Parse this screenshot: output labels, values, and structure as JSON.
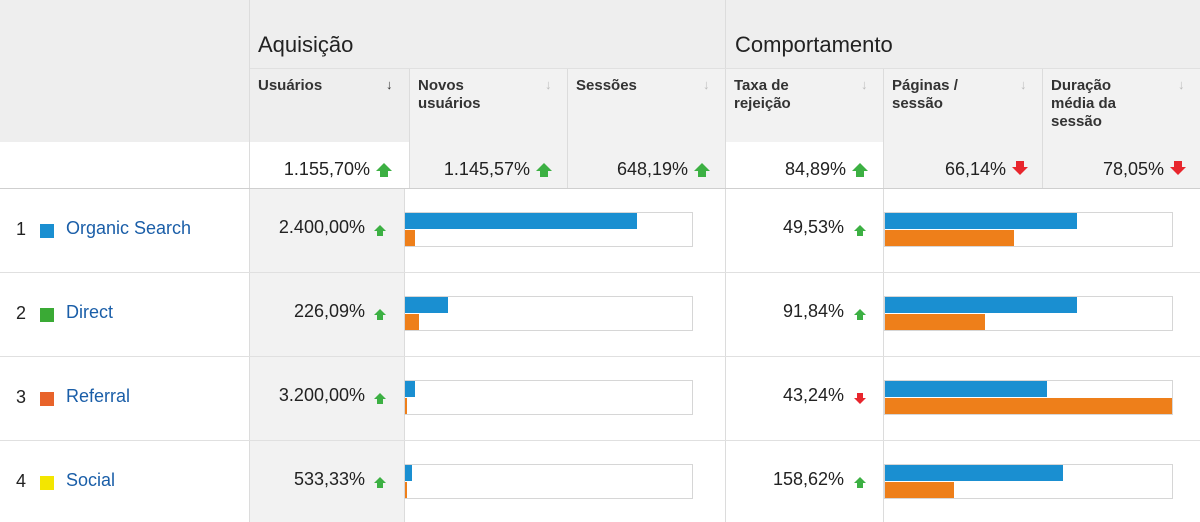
{
  "groups": {
    "acquisition": "Aquisição",
    "behavior": "Comportamento"
  },
  "columns": {
    "users": "Usuários",
    "new_users": "Novos usuários",
    "sessions": "Sessões",
    "bounce_rate": "Taxa de rejeição",
    "pages_session": "Páginas / sessão",
    "avg_duration": "Duração média da sessão"
  },
  "totals": {
    "users": {
      "value": "1.155,70%",
      "trend": "up"
    },
    "new_users": {
      "value": "1.145,57%",
      "trend": "up"
    },
    "sessions": {
      "value": "648,19%",
      "trend": "up"
    },
    "bounce_rate": {
      "value": "84,89%",
      "trend": "up"
    },
    "pages_session": {
      "value": "66,14%",
      "trend": "down"
    },
    "avg_duration": {
      "value": "78,05%",
      "trend": "down"
    }
  },
  "rows": [
    {
      "num": "1",
      "channel": "Organic Search",
      "swatch_color": "#1a8fd1",
      "users": "2.400,00%",
      "users_trend": "up",
      "bounce": "49,53%",
      "bounce_trend": "up",
      "acq_bars": {
        "current": 0.81,
        "previous": 0.035
      },
      "beh_bars": {
        "current": 0.67,
        "previous": 0.45
      }
    },
    {
      "num": "2",
      "channel": "Direct",
      "swatch_color": "#3aaa35",
      "users": "226,09%",
      "users_trend": "up",
      "bounce": "91,84%",
      "bounce_trend": "up",
      "acq_bars": {
        "current": 0.15,
        "previous": 0.05
      },
      "beh_bars": {
        "current": 0.67,
        "previous": 0.35
      }
    },
    {
      "num": "3",
      "channel": "Referral",
      "swatch_color": "#e8632a",
      "users": "3.200,00%",
      "users_trend": "up",
      "bounce": "43,24%",
      "bounce_trend": "down",
      "acq_bars": {
        "current": 0.035,
        "previous": 0.005
      },
      "beh_bars": {
        "current": 0.565,
        "previous": 1.0
      }
    },
    {
      "num": "4",
      "channel": "Social",
      "swatch_color": "#f3e600",
      "users": "533,33%",
      "users_trend": "up",
      "bounce": "158,62%",
      "bounce_trend": "up",
      "acq_bars": {
        "current": 0.025,
        "previous": 0.005
      },
      "beh_bars": {
        "current": 0.62,
        "previous": 0.24
      }
    }
  ],
  "colors": {
    "bar_current": "#1a8fd1",
    "bar_previous": "#ee7f1a",
    "trend_up": "#3cb043",
    "trend_down": "#e8262d",
    "link": "#1a5ea8"
  }
}
